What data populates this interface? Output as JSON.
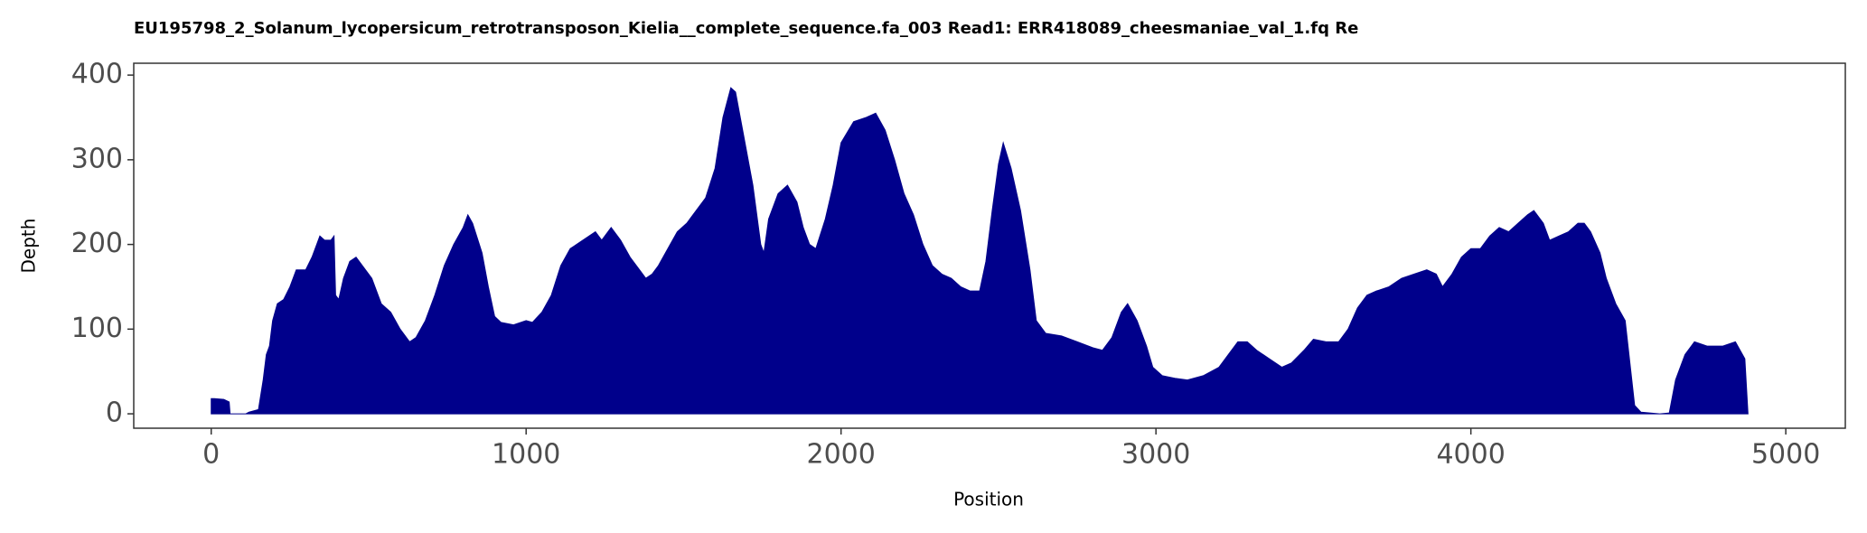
{
  "chart_data": {
    "type": "area",
    "title": "EU195798_2_Solanum_lycopersicum_retrotransposon_Kielia__complete_sequence.fa_003   Read1: ERR418089_cheesmaniae_val_1.fq   Re",
    "x_label": "Position",
    "y_label": "Depth",
    "color": "#00008b",
    "xlim": [
      -246,
      5189
    ],
    "ylim": [
      -17,
      414
    ],
    "xticks": [
      0,
      1000,
      2000,
      3000,
      4000,
      5000
    ],
    "yticks": [
      0,
      100,
      200,
      300,
      400
    ],
    "grid": false,
    "x": [
      0,
      10,
      40,
      57,
      60,
      65,
      110,
      120,
      150,
      165,
      175,
      185,
      195,
      210,
      230,
      250,
      270,
      300,
      320,
      345,
      360,
      380,
      390,
      395,
      405,
      420,
      440,
      460,
      480,
      510,
      540,
      570,
      600,
      630,
      650,
      680,
      710,
      740,
      770,
      800,
      815,
      830,
      860,
      880,
      900,
      920,
      960,
      1000,
      1020,
      1050,
      1080,
      1110,
      1140,
      1180,
      1220,
      1240,
      1270,
      1300,
      1330,
      1360,
      1380,
      1400,
      1420,
      1450,
      1480,
      1510,
      1540,
      1570,
      1600,
      1625,
      1650,
      1665,
      1690,
      1720,
      1745,
      1755,
      1770,
      1800,
      1830,
      1860,
      1880,
      1900,
      1920,
      1950,
      1975,
      2000,
      2040,
      2080,
      2110,
      2140,
      2170,
      2200,
      2230,
      2260,
      2290,
      2320,
      2350,
      2380,
      2410,
      2440,
      2460,
      2480,
      2500,
      2515,
      2540,
      2570,
      2600,
      2620,
      2650,
      2700,
      2750,
      2800,
      2830,
      2860,
      2890,
      2910,
      2940,
      2970,
      2990,
      3020,
      3060,
      3100,
      3150,
      3200,
      3230,
      3260,
      3290,
      3320,
      3360,
      3400,
      3430,
      3470,
      3500,
      3540,
      3580,
      3610,
      3640,
      3670,
      3700,
      3740,
      3780,
      3820,
      3860,
      3890,
      3910,
      3940,
      3970,
      4000,
      4030,
      4060,
      4090,
      4120,
      4150,
      4180,
      4200,
      4230,
      4250,
      4280,
      4310,
      4340,
      4360,
      4380,
      4410,
      4430,
      4460,
      4490,
      4505,
      4520,
      4540,
      4600,
      4630,
      4650,
      4680,
      4710,
      4750,
      4800,
      4840,
      4870,
      4880
    ],
    "values": [
      18,
      18,
      17,
      14,
      0,
      0,
      0,
      2,
      5,
      40,
      70,
      80,
      110,
      130,
      135,
      150,
      170,
      170,
      185,
      210,
      205,
      205,
      210,
      140,
      135,
      160,
      180,
      185,
      175,
      160,
      130,
      120,
      100,
      85,
      90,
      110,
      140,
      175,
      200,
      220,
      235,
      225,
      190,
      150,
      115,
      108,
      105,
      110,
      108,
      120,
      140,
      175,
      195,
      205,
      215,
      205,
      220,
      205,
      185,
      170,
      160,
      165,
      175,
      195,
      215,
      225,
      240,
      255,
      290,
      350,
      385,
      380,
      330,
      270,
      200,
      190,
      230,
      260,
      270,
      250,
      220,
      200,
      195,
      230,
      270,
      320,
      345,
      350,
      355,
      335,
      300,
      260,
      235,
      200,
      175,
      165,
      160,
      150,
      145,
      145,
      180,
      240,
      295,
      320,
      290,
      240,
      170,
      110,
      95,
      92,
      85,
      78,
      75,
      90,
      120,
      130,
      110,
      80,
      55,
      45,
      42,
      40,
      45,
      55,
      70,
      85,
      85,
      75,
      65,
      55,
      60,
      75,
      88,
      85,
      85,
      100,
      125,
      140,
      145,
      150,
      160,
      165,
      170,
      165,
      150,
      165,
      185,
      195,
      195,
      210,
      220,
      215,
      225,
      235,
      240,
      225,
      205,
      210,
      215,
      225,
      225,
      215,
      190,
      160,
      130,
      110,
      60,
      10,
      2,
      0,
      1,
      40,
      70,
      85,
      80,
      80,
      85,
      65,
      0
    ]
  }
}
